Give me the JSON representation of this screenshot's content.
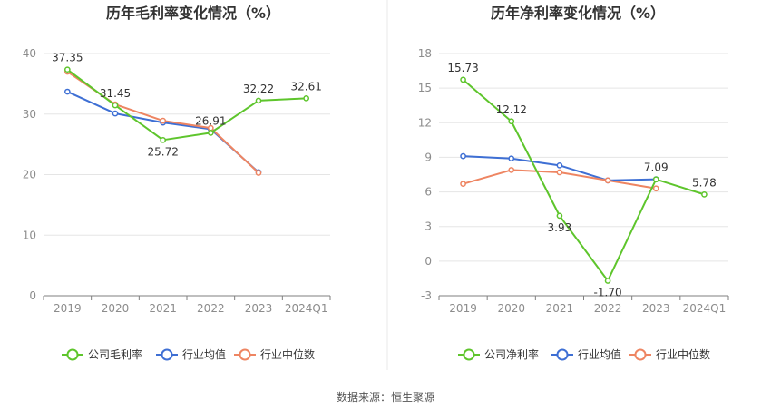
{
  "source_note": "数据来源：恒生聚源",
  "colors": {
    "company": "#5ec52c",
    "industry_avg": "#3e6fd4",
    "industry_median": "#ee8562",
    "grid": "#e5e5e5",
    "axis": "#7f7f7f",
    "tick_text": "#8c8c8c",
    "title": "#333333",
    "divider": "#e8e8e8"
  },
  "chart_data": [
    {
      "type": "line",
      "title": "历年毛利率变化情况（%）",
      "categories": [
        "2019",
        "2020",
        "2021",
        "2022",
        "2023",
        "2024Q1"
      ],
      "ylim": [
        0,
        40
      ],
      "yticks": [
        0,
        10,
        20,
        30,
        40
      ],
      "grid": true,
      "legend_position": "bottom",
      "series": [
        {
          "name": "公司毛利率",
          "key": "company",
          "values": [
            37.35,
            31.45,
            25.72,
            26.91,
            32.22,
            32.61
          ],
          "labels": [
            "37.35",
            "31.45",
            "25.72",
            "26.91",
            "32.22",
            "32.61"
          ]
        },
        {
          "name": "行业均值",
          "key": "industry_avg",
          "values": [
            33.7,
            30.1,
            28.6,
            27.5,
            20.4,
            null
          ]
        },
        {
          "name": "行业中位数",
          "key": "industry_median",
          "values": [
            37.0,
            31.6,
            28.9,
            27.7,
            20.3,
            null
          ]
        }
      ]
    },
    {
      "type": "line",
      "title": "历年净利率变化情况（%）",
      "categories": [
        "2019",
        "2020",
        "2021",
        "2022",
        "2023",
        "2024Q1"
      ],
      "ylim": [
        -3,
        18
      ],
      "yticks": [
        -3,
        0,
        3,
        6,
        9,
        12,
        15,
        18
      ],
      "grid": true,
      "legend_position": "bottom",
      "series": [
        {
          "name": "公司净利率",
          "key": "company",
          "values": [
            15.73,
            12.12,
            3.93,
            -1.7,
            7.09,
            5.78
          ],
          "labels": [
            "15.73",
            "12.12",
            "3.93",
            "-1.70",
            "7.09",
            "5.78"
          ]
        },
        {
          "name": "行业均值",
          "key": "industry_avg",
          "values": [
            9.1,
            8.9,
            8.3,
            7.0,
            7.1,
            null
          ]
        },
        {
          "name": "行业中位数",
          "key": "industry_median",
          "values": [
            6.7,
            7.9,
            7.7,
            7.0,
            6.3,
            null
          ]
        }
      ]
    }
  ]
}
